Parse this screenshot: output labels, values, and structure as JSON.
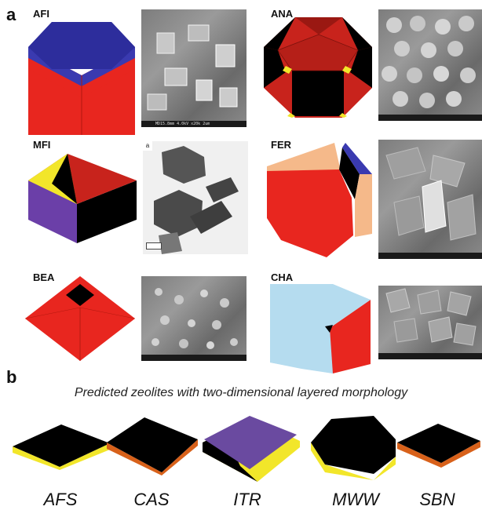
{
  "panel_a": {
    "letter": "a"
  },
  "panel_b": {
    "letter": "b",
    "caption": "Predicted zeolites with two-dimensional layered morphology"
  },
  "frameworks": [
    {
      "label": "AFI",
      "sem_caption": "MD15.8mm  4.0kV x20k   2um"
    },
    {
      "label": "ANA"
    },
    {
      "label": "MFI",
      "tem_marker": "a"
    },
    {
      "label": "FER"
    },
    {
      "label": "BEA"
    },
    {
      "label": "CHA"
    }
  ],
  "predicted": [
    "AFS",
    "CAS",
    "ITR",
    "MWW",
    "SBN"
  ],
  "colors": {
    "red": "#e8261f",
    "blue": "#3a3ab0",
    "black": "#000000",
    "yellow": "#f2e62a",
    "purple": "#6b3fa8",
    "peach": "#f5b98a",
    "lightblue": "#b5dcef",
    "orange": "#d8611a",
    "violet": "#6a4aa0"
  }
}
